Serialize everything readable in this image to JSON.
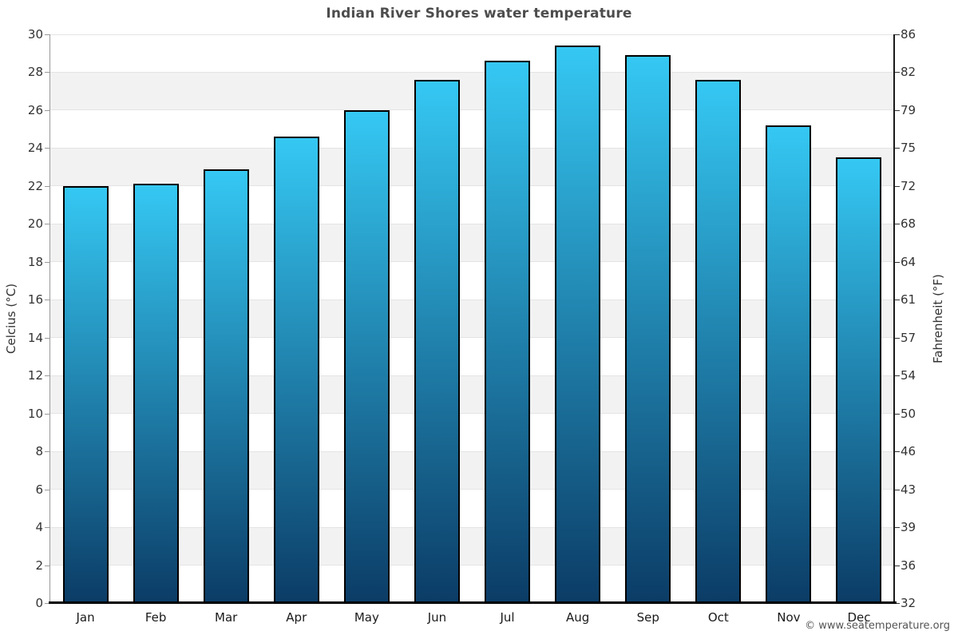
{
  "page": {
    "footer": "© www.seatemperature.org"
  },
  "chart_data": {
    "type": "bar",
    "title": "Indian River Shores water temperature",
    "series_name": "Water temperature",
    "categories": [
      "Jan",
      "Feb",
      "Mar",
      "Apr",
      "May",
      "Jun",
      "Jul",
      "Aug",
      "Sep",
      "Oct",
      "Nov",
      "Dec"
    ],
    "values": [
      22.0,
      22.1,
      22.9,
      24.6,
      26.0,
      27.6,
      28.6,
      29.4,
      28.9,
      27.6,
      25.2,
      23.5
    ],
    "xlabel": "",
    "ylabel_left": "Celcius (°C)",
    "ylabel_right": "Fahrenheit (°F)",
    "ylim": [
      0,
      30
    ],
    "celsius_ticks": [
      0,
      2,
      4,
      6,
      8,
      10,
      12,
      14,
      16,
      18,
      20,
      22,
      24,
      26,
      28,
      30
    ],
    "fahrenheit_tick_labels": [
      "32",
      "36",
      "39",
      "43",
      "46",
      "50",
      "54",
      "57",
      "61",
      "64",
      "68",
      "72",
      "75",
      "79",
      "82",
      "86"
    ],
    "grid": "alternating horizontal bands every 2°C",
    "legend": "none",
    "colors": {
      "bar_gradient_top": "#35c8f3",
      "bar_gradient_bottom": "#0b3c66",
      "bar_border": "#000000",
      "band_gray": "#f2f2f2",
      "band_white": "#ffffff",
      "gridline": "#e4e4e4",
      "axis_baseline": "#000000",
      "title_text": "#4d4d4d",
      "tick_text": "#333333",
      "footer_text": "#555555"
    }
  }
}
